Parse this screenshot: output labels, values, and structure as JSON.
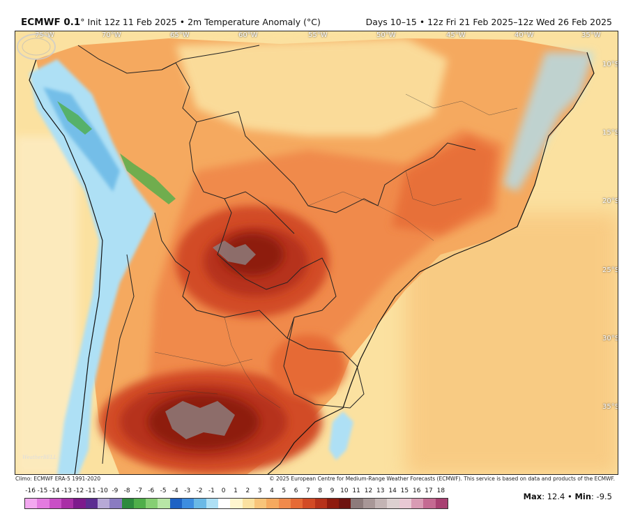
{
  "header": {
    "model": "ECMWF 0.1",
    "degree_mark": "°",
    "init_text": "Init 12z 11 Feb 2025",
    "bullet": "•",
    "variable": "2m Temperature Anomaly (°C)",
    "valid_text": "Days 10–15 • 12z Fri 21 Feb 2025–12z Wed 26 Feb 2025"
  },
  "map": {
    "longitude_labels": [
      "75°W",
      "70°W",
      "65°W",
      "60°W",
      "55°W",
      "50°W",
      "45°W",
      "40°W",
      "35°W"
    ],
    "latitude_labels": [
      "10°S",
      "15°S",
      "20°S",
      "25°S",
      "30°S",
      "35°S"
    ],
    "logo_text": "WeatherBELL",
    "colors": {
      "ocean_base": "#fbe1a0",
      "land_warm": "#f08a4b",
      "hot_core": "#8e1b0e",
      "extreme": "#8d7b7b",
      "cool": "#aee0f5",
      "cold": "#6ab9e6"
    }
  },
  "footer": {
    "climo": "Climo: ECMWF ERA-5 1991-2020",
    "copyright": "© 2025 European Centre for Medium-Range Weather Forecasts (ECMWF). This service is based on data and products of the ECMWF.",
    "max_label": "Max",
    "max_value": "12.4",
    "separator": "•",
    "min_label": "Min",
    "min_value": "-9.5"
  },
  "colorbar": {
    "ticks": [
      "-16",
      "-15",
      "-14",
      "-13",
      "-12",
      "-11",
      "-10",
      "-9",
      "-8",
      "-7",
      "-6",
      "-5",
      "-4",
      "-3",
      "-2",
      "-1",
      "0",
      "1",
      "2",
      "3",
      "4",
      "5",
      "6",
      "7",
      "8",
      "9",
      "10",
      "11",
      "12",
      "13",
      "14",
      "15",
      "16",
      "17",
      "18"
    ],
    "colors": [
      "#f3a8f0",
      "#e37be0",
      "#c94fc6",
      "#a92fa6",
      "#7d1a8c",
      "#5c2d91",
      "#b7a9d6",
      "#8a7bc1",
      "#2d8a3e",
      "#4fae4a",
      "#86cf73",
      "#b8e6a6",
      "#1e62c4",
      "#3d8de0",
      "#6ab9e6",
      "#aee0f5",
      "#ffffff",
      "#fff6cf",
      "#fbe1a0",
      "#f8c47a",
      "#f5a95f",
      "#f08a4b",
      "#e66a35",
      "#d24b25",
      "#b6321a",
      "#8e1b0e",
      "#6e1410",
      "#8d7b7b",
      "#a89797",
      "#c3b4b4",
      "#dcd0d0",
      "#e9c9d4",
      "#d99bb4",
      "#c46a92",
      "#a84172"
    ]
  }
}
